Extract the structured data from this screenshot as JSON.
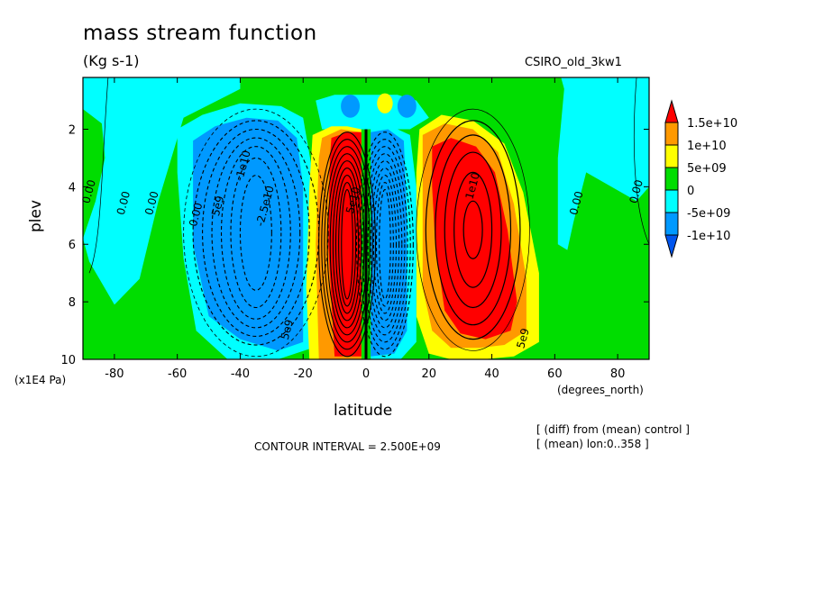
{
  "chart_data": {
    "type": "heatmap",
    "title": "mass stream function",
    "units": "(Kg s-1)",
    "model_label": "CSIRO_old_3kw1",
    "xlabel": "latitude",
    "ylabel": "plev",
    "x_unit": "(degrees_north)",
    "y_unit": "(x1E4 Pa)",
    "xlim": [
      -90,
      90
    ],
    "ylim": [
      10,
      0.2
    ],
    "x_ticks": [
      -80,
      -60,
      -40,
      -20,
      0,
      20,
      40,
      60,
      80
    ],
    "x_tick_labels": [
      "-80",
      "-60",
      "-40",
      "-20",
      "0",
      "20",
      "40",
      "60",
      "80"
    ],
    "y_ticks": [
      2,
      4,
      6,
      8,
      10
    ],
    "y_tick_labels": [
      "2",
      "4",
      "6",
      "8",
      "10"
    ],
    "contour_interval_text": "CONTOUR INTERVAL = 2.500E+09",
    "notes": [
      "[ (diff) from (mean) control ]",
      "[ (mean) lon:0..358 ]"
    ],
    "colorbar": {
      "levels": [
        "1.5e+10",
        "1e+10",
        "5e+09",
        "0",
        "-5e+09",
        "-1e+10"
      ],
      "colors": [
        "#ff0000",
        "#ff9900",
        "#ffff00",
        "#00dd00",
        "#00ffff",
        "#0099ff",
        "#0055ee"
      ]
    },
    "contour_labels": [
      {
        "text": "0.00",
        "lat": -87,
        "p": 4.2
      },
      {
        "text": "0.00",
        "lat": -76,
        "p": 4.6
      },
      {
        "text": "0.00",
        "lat": -67,
        "p": 4.6
      },
      {
        "text": "0.00",
        "lat": -53,
        "p": 5.0
      },
      {
        "text": "5e9",
        "lat": -46,
        "p": 4.7
      },
      {
        "text": "-1e10",
        "lat": -38,
        "p": 3.3
      },
      {
        "text": "-2.5e10",
        "lat": -31,
        "p": 4.7
      },
      {
        "text": "5e9",
        "lat": -24,
        "p": 9.0
      },
      {
        "text": "5e10",
        "lat": -3,
        "p": 4.5
      },
      {
        "text": "1e10",
        "lat": 35,
        "p": 4.0
      },
      {
        "text": "5e9",
        "lat": 51,
        "p": 9.3
      },
      {
        "text": "0.00",
        "lat": 68,
        "p": 4.6
      },
      {
        "text": "0.00",
        "lat": 87,
        "p": 4.2
      }
    ],
    "cells": [
      {
        "lat": -33,
        "p": 5.5,
        "value": -25000000000
      },
      {
        "lat": -6,
        "p": 6.0,
        "value": 50000000000
      },
      {
        "lat": 6,
        "p": 6.0,
        "value": -50000000000
      },
      {
        "lat": 32,
        "p": 4.5,
        "value": 22500000000
      }
    ]
  }
}
